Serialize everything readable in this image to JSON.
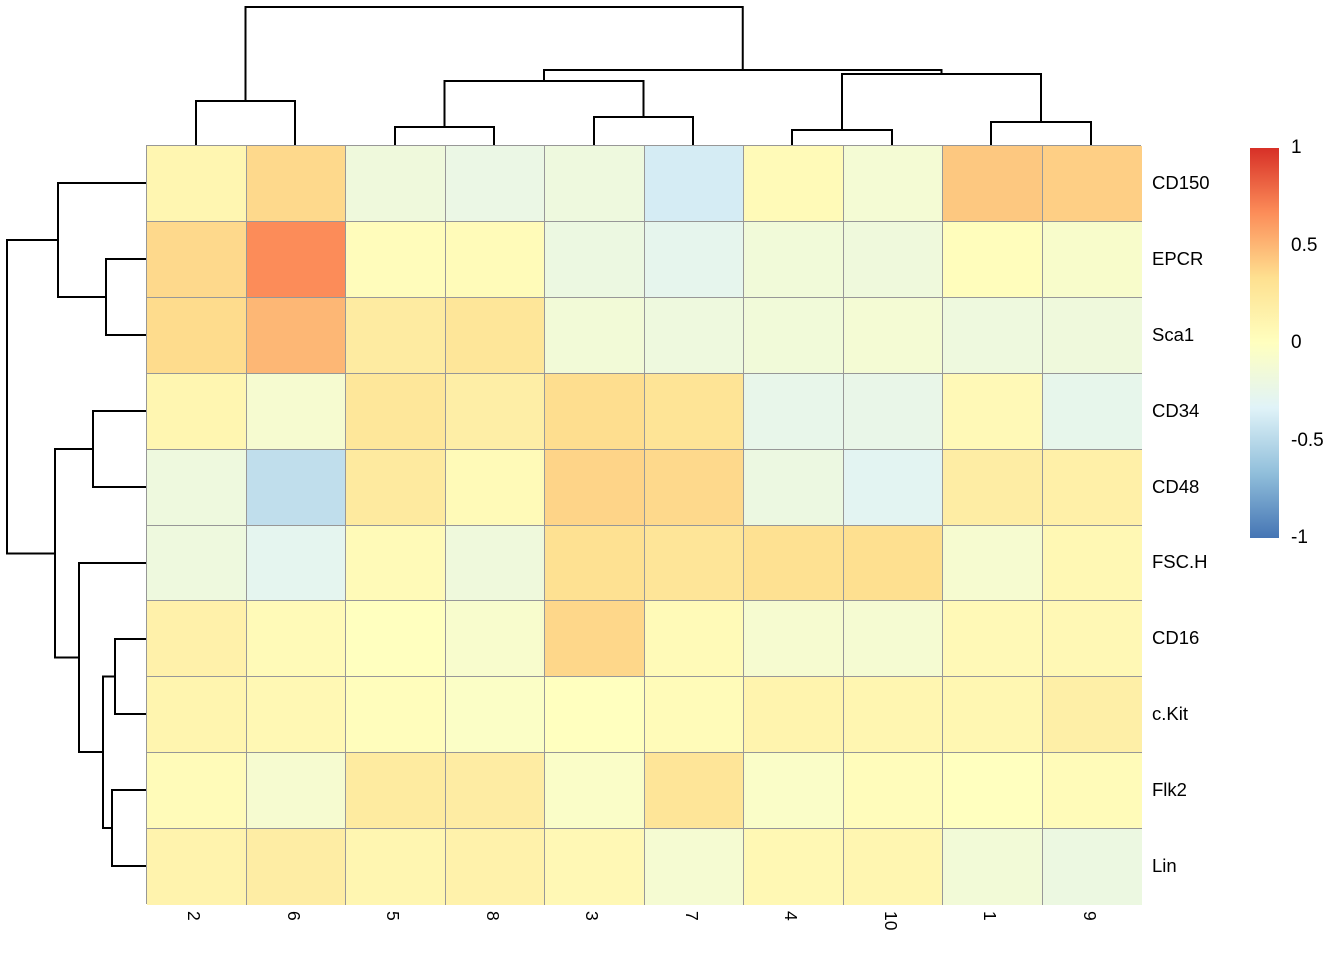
{
  "chart_data": {
    "type": "heatmap",
    "title": "",
    "rows": [
      "CD150",
      "EPCR",
      "Sca1",
      "CD34",
      "CD48",
      "FSC.H",
      "CD16",
      "c.Kit",
      "Flk2",
      "Lin"
    ],
    "columns": [
      "2",
      "6",
      "5",
      "8",
      "3",
      "7",
      "4",
      "10",
      "1",
      "9"
    ],
    "values": [
      [
        0.1,
        0.36,
        -0.17,
        -0.22,
        -0.18,
        -0.38,
        0.05,
        -0.12,
        0.43,
        0.4
      ],
      [
        0.36,
        0.67,
        0.03,
        0.04,
        -0.2,
        -0.27,
        -0.15,
        -0.17,
        0.02,
        -0.07
      ],
      [
        0.35,
        0.5,
        0.21,
        0.27,
        -0.14,
        -0.18,
        -0.15,
        -0.12,
        -0.18,
        -0.17
      ],
      [
        0.1,
        -0.1,
        0.26,
        0.18,
        0.34,
        0.29,
        -0.25,
        -0.24,
        0.06,
        -0.26
      ],
      [
        -0.18,
        -0.47,
        0.23,
        0.05,
        0.38,
        0.36,
        -0.2,
        -0.3,
        0.19,
        0.16
      ],
      [
        -0.18,
        -0.28,
        0.05,
        -0.17,
        0.32,
        0.28,
        0.32,
        0.33,
        -0.1,
        0.08
      ],
      [
        0.15,
        0.05,
        0.0,
        -0.08,
        0.37,
        0.05,
        -0.1,
        -0.11,
        0.06,
        0.07
      ],
      [
        0.11,
        0.08,
        0.02,
        -0.04,
        0.0,
        0.04,
        0.12,
        0.1,
        0.09,
        0.17
      ],
      [
        0.04,
        -0.1,
        0.22,
        0.2,
        -0.05,
        0.28,
        -0.05,
        0.03,
        0.0,
        0.04
      ],
      [
        0.13,
        0.19,
        0.1,
        0.14,
        0.07,
        -0.11,
        0.08,
        0.1,
        -0.14,
        -0.2
      ]
    ],
    "value_range": [
      -1,
      1
    ],
    "color_scale": {
      "name": "RdYlBu-reversed",
      "stops": [
        {
          "value": -1.0,
          "color": "#4575B4"
        },
        {
          "value": -0.6667,
          "color": "#91BFDB"
        },
        {
          "value": -0.3333,
          "color": "#E0F3F8"
        },
        {
          "value": 0.0,
          "color": "#FFFFBF"
        },
        {
          "value": 0.3333,
          "color": "#FEE090"
        },
        {
          "value": 0.6667,
          "color": "#FC8D59"
        },
        {
          "value": 1.0,
          "color": "#D73027"
        }
      ]
    },
    "legend": {
      "tick_labels": [
        "1",
        "0.5",
        "0",
        "-0.5",
        "-1"
      ],
      "tick_values": [
        1,
        0.5,
        0,
        -0.5,
        -1
      ],
      "position": "right"
    },
    "grid": {
      "line_color": "#979797",
      "on": true
    },
    "dendrogram_color": "#000000",
    "column_dendrogram_segments": [
      [
        [
          196,
          145
        ],
        [
          196,
          101
        ],
        [
          295,
          101
        ],
        [
          295,
          145
        ]
      ],
      [
        [
          245.5,
          101
        ],
        [
          245.5,
          7
        ],
        [
          742.75,
          7
        ],
        [
          742.75,
          70
        ]
      ],
      [
        [
          395,
          145
        ],
        [
          395,
          127
        ],
        [
          494,
          127
        ],
        [
          494,
          145
        ]
      ],
      [
        [
          594,
          145
        ],
        [
          594,
          117
        ],
        [
          693,
          117
        ],
        [
          693,
          145
        ]
      ],
      [
        [
          444.5,
          127
        ],
        [
          444.5,
          81
        ],
        [
          643.5,
          81
        ],
        [
          643.5,
          117
        ]
      ],
      [
        [
          792,
          145
        ],
        [
          792,
          130
        ],
        [
          892,
          130
        ],
        [
          892,
          145
        ]
      ],
      [
        [
          991,
          145
        ],
        [
          991,
          122
        ],
        [
          1091,
          122
        ],
        [
          1091,
          145
        ]
      ],
      [
        [
          842,
          130
        ],
        [
          842,
          74
        ],
        [
          1041,
          74
        ],
        [
          1041,
          122
        ]
      ],
      [
        [
          544,
          81
        ],
        [
          544,
          70
        ],
        [
          941.5,
          70
        ],
        [
          941.5,
          74
        ]
      ]
    ],
    "row_dendrogram_segments": [
      [
        [
          146,
          183
        ],
        [
          58,
          183
        ],
        [
          58,
          297
        ],
        [
          106,
          297
        ]
      ],
      [
        [
          146,
          259
        ],
        [
          106,
          259
        ],
        [
          106,
          335
        ],
        [
          146,
          335
        ]
      ],
      [
        [
          58,
          240
        ],
        [
          7,
          240
        ],
        [
          7,
          553.5
        ],
        [
          55,
          553.5
        ]
      ],
      [
        [
          146,
          411
        ],
        [
          93,
          411
        ],
        [
          93,
          487
        ],
        [
          146,
          487
        ]
      ],
      [
        [
          93,
          449
        ],
        [
          55,
          449
        ],
        [
          55,
          657.5
        ],
        [
          79,
          657.5
        ]
      ],
      [
        [
          146,
          563
        ],
        [
          79,
          563
        ],
        [
          79,
          752
        ],
        [
          103,
          752
        ]
      ],
      [
        [
          146,
          639
        ],
        [
          115,
          639
        ],
        [
          115,
          714
        ],
        [
          146,
          714
        ]
      ],
      [
        [
          146,
          790
        ],
        [
          112,
          790
        ],
        [
          112,
          866
        ],
        [
          146,
          866
        ]
      ],
      [
        [
          115,
          676.5
        ],
        [
          103,
          676.5
        ],
        [
          103,
          828
        ],
        [
          112,
          828
        ]
      ]
    ]
  }
}
